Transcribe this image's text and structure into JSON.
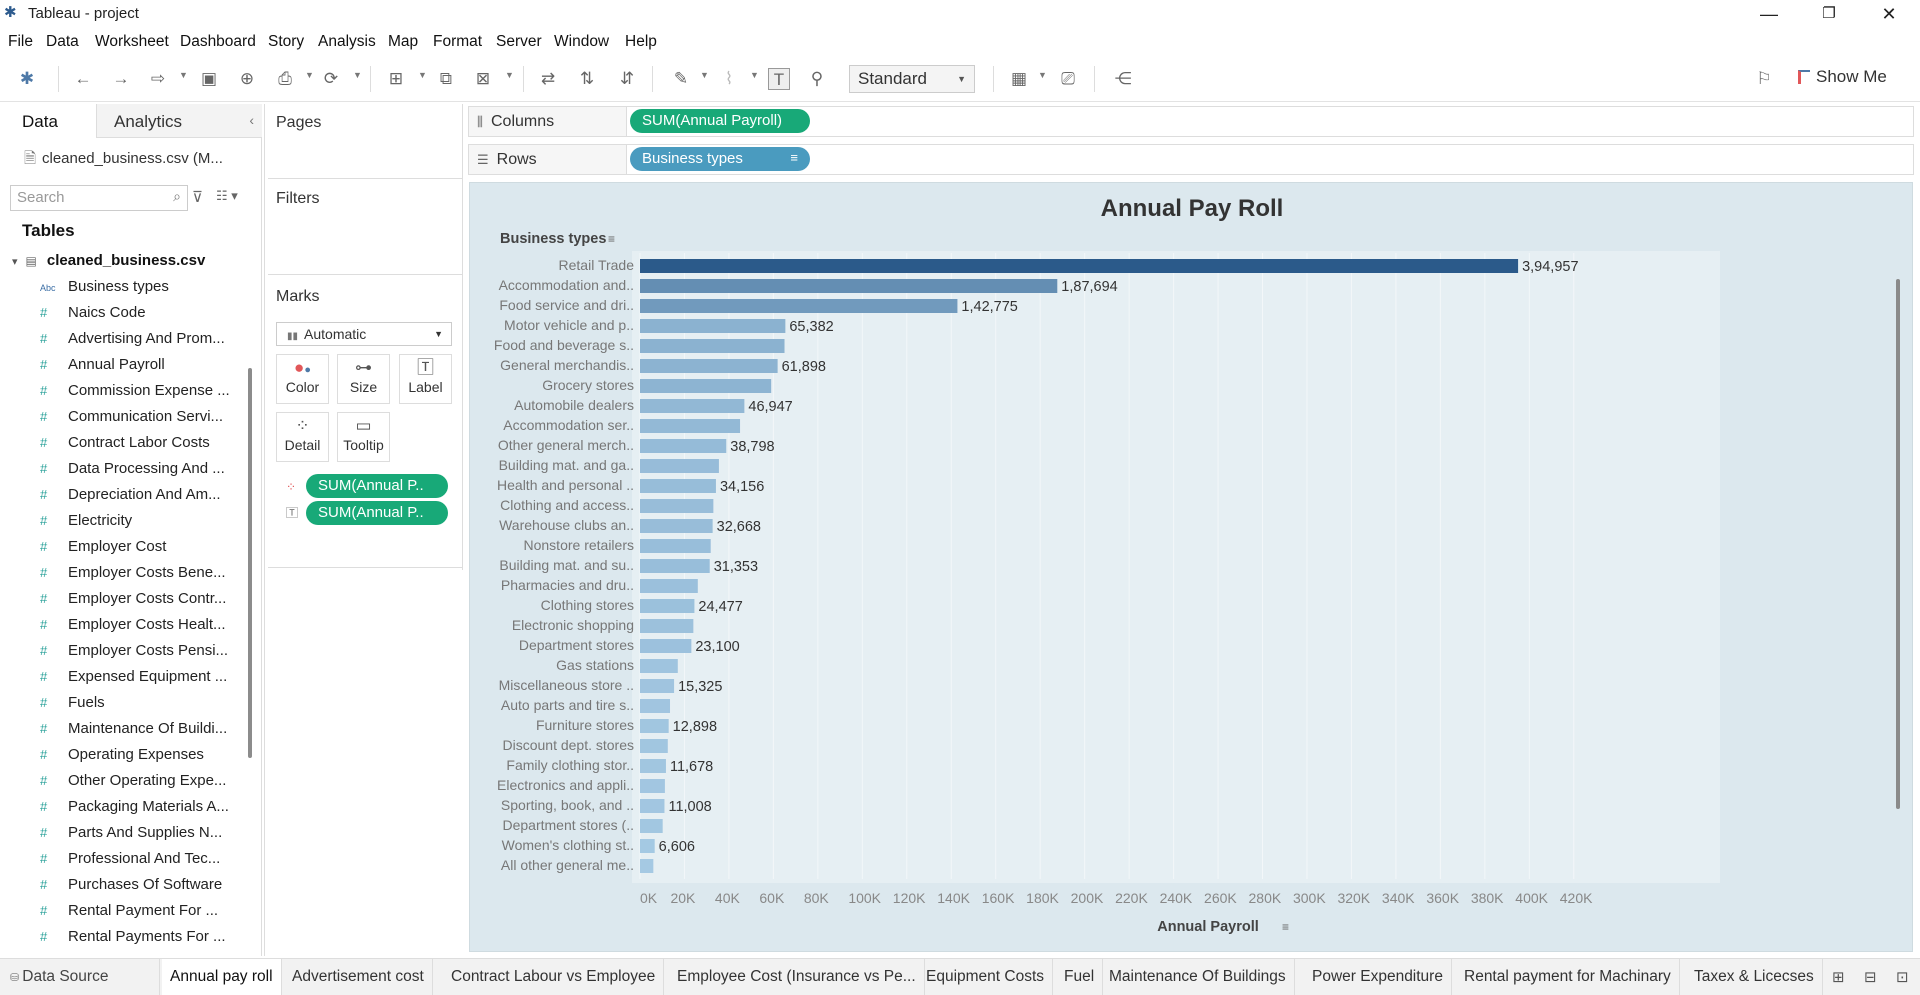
{
  "window": {
    "title": "Tableau - project"
  },
  "menu": [
    "File",
    "Data",
    "Worksheet",
    "Dashboard",
    "Story",
    "Analysis",
    "Map",
    "Format",
    "Server",
    "Window",
    "Help"
  ],
  "toolbar": {
    "fit_value": "Standard",
    "show_me_label": "Show Me"
  },
  "left_pane": {
    "tab_data": "Data",
    "tab_analytics": "Analytics",
    "datasource": "cleaned_business.csv (M...",
    "search_placeholder": "Search",
    "tables_heading": "Tables",
    "table_name": "cleaned_business.csv",
    "fields": [
      {
        "type": "Abc",
        "name": "Business types"
      },
      {
        "type": "#",
        "name": "Naics Code"
      },
      {
        "type": "#",
        "name": "Advertising And Prom..."
      },
      {
        "type": "#",
        "name": "Annual Payroll"
      },
      {
        "type": "#",
        "name": "Commission Expense ..."
      },
      {
        "type": "#",
        "name": "Communication Servi..."
      },
      {
        "type": "#",
        "name": "Contract Labor Costs"
      },
      {
        "type": "#",
        "name": "Data Processing And ..."
      },
      {
        "type": "#",
        "name": "Depreciation And Am..."
      },
      {
        "type": "#",
        "name": "Electricity"
      },
      {
        "type": "#",
        "name": "Employer Cost"
      },
      {
        "type": "#",
        "name": "Employer Costs Bene..."
      },
      {
        "type": "#",
        "name": "Employer Costs Contr..."
      },
      {
        "type": "#",
        "name": "Employer Costs Healt..."
      },
      {
        "type": "#",
        "name": "Employer Costs Pensi..."
      },
      {
        "type": "#",
        "name": "Expensed Equipment ..."
      },
      {
        "type": "#",
        "name": "Fuels"
      },
      {
        "type": "#",
        "name": "Maintenance Of Buildi..."
      },
      {
        "type": "#",
        "name": "Operating Expenses"
      },
      {
        "type": "#",
        "name": "Other Operating Expe..."
      },
      {
        "type": "#",
        "name": "Packaging Materials A..."
      },
      {
        "type": "#",
        "name": "Parts And Supplies N..."
      },
      {
        "type": "#",
        "name": "Professional And Tec..."
      },
      {
        "type": "#",
        "name": "Purchases Of Software"
      },
      {
        "type": "#",
        "name": "Rental Payment For ..."
      },
      {
        "type": "#",
        "name": "Rental Payments For ..."
      }
    ]
  },
  "cards": {
    "pages": "Pages",
    "filters": "Filters",
    "marks": "Marks",
    "mark_type": "Automatic",
    "buttons": [
      "Color",
      "Size",
      "Label",
      "Detail",
      "Tooltip"
    ],
    "pill_color": "SUM(Annual P..",
    "pill_label": "SUM(Annual P.."
  },
  "shelves": {
    "columns_label": "Columns",
    "columns_pill": "SUM(Annual Payroll)",
    "rows_label": "Rows",
    "rows_pill": "Business types"
  },
  "chart_data": {
    "type": "bar",
    "orientation": "horizontal",
    "title": "Annual Pay Roll",
    "row_header": "Business types",
    "xlabel": "Annual Payroll",
    "xlim": [
      0,
      430000
    ],
    "x_ticks": [
      "0K",
      "20K",
      "40K",
      "60K",
      "80K",
      "100K",
      "120K",
      "140K",
      "160K",
      "180K",
      "200K",
      "220K",
      "240K",
      "260K",
      "280K",
      "300K",
      "320K",
      "340K",
      "360K",
      "380K",
      "400K",
      "420K"
    ],
    "grid": true,
    "color_scale": [
      "#a9cde6",
      "#2b5a8a"
    ],
    "categories": [
      "Retail Trade",
      "Accommodation and..",
      "Food service and dri..",
      "Motor vehicle and p..",
      "Food and beverage s..",
      "General merchandis..",
      "Grocery stores",
      "Automobile dealers",
      "Accommodation ser..",
      "Other general merch..",
      "Building mat. and ga..",
      "Health and personal ..",
      "Clothing and access..",
      "Warehouse clubs an..",
      "Nonstore retailers",
      "Building mat. and su..",
      "Pharmacies and dru..",
      "Clothing stores",
      "Electronic shopping",
      "Department stores",
      "Gas stations",
      "Miscellaneous store ..",
      "Auto parts and tire s..",
      "Furniture stores",
      "Discount dept. stores",
      "Family clothing stor..",
      "Electronics and appli..",
      "Sporting, book, and ..",
      "Department stores (..",
      "Women's clothing st..",
      "All other general me.."
    ],
    "values": [
      394957,
      187694,
      142775,
      65382,
      65000,
      61898,
      59000,
      46947,
      45000,
      38798,
      35500,
      34156,
      33000,
      32668,
      31800,
      31353,
      26000,
      24477,
      24000,
      23100,
      17000,
      15325,
      13500,
      12898,
      12500,
      11678,
      11200,
      11008,
      10200,
      6606,
      6000
    ],
    "labels": [
      "3,94,957",
      "1,87,694",
      "1,42,775",
      "65,382",
      "",
      "61,898",
      "",
      "46,947",
      "",
      "38,798",
      "",
      "34,156",
      "",
      "32,668",
      "",
      "31,353",
      "",
      "24,477",
      "",
      "23,100",
      "",
      "15,325",
      "",
      "12,898",
      "",
      "11,678",
      "",
      "11,008",
      "",
      "6,606",
      ""
    ]
  },
  "sheet_tabs": {
    "data_source": "Data Source",
    "tabs": [
      "Annual pay roll",
      "Advertisement cost",
      "Contract Labour vs Employee",
      "Employee Cost (Insurance vs Pe...",
      "Equipment Costs",
      "Fuel",
      "Maintenance Of Buildings",
      "Power Expenditure",
      "Rental payment for Machinary",
      "Taxex & Licecses"
    ],
    "active": "Annual pay roll"
  }
}
